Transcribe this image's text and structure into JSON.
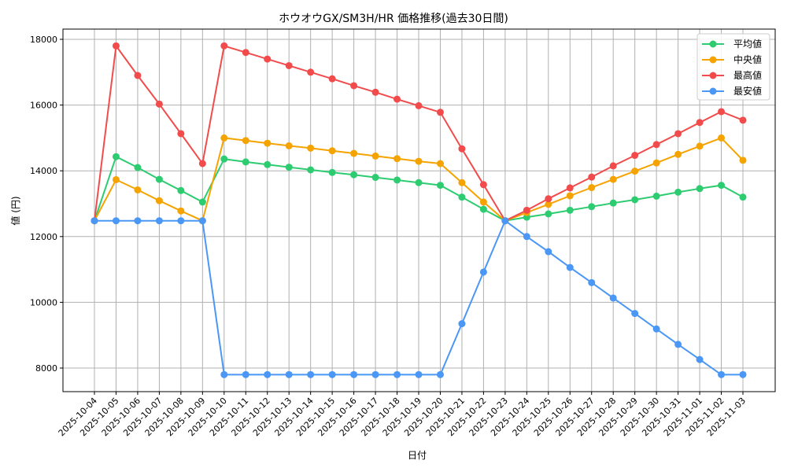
{
  "chart_data": {
    "type": "line",
    "title": "ホウオウGX/SM3H/HR 価格推移(過去30日間)",
    "xlabel": "日付",
    "ylabel": "値 (円)",
    "ylim": [
      7300,
      18350
    ],
    "yticks": [
      8000,
      10000,
      12000,
      14000,
      16000,
      18000
    ],
    "grid": true,
    "legend_position": "upper right",
    "categories": [
      "2025-10-04",
      "2025-10-05",
      "2025-10-06",
      "2025-10-07",
      "2025-10-08",
      "2025-10-09",
      "2025-10-10",
      "2025-10-11",
      "2025-10-12",
      "2025-10-13",
      "2025-10-14",
      "2025-10-15",
      "2025-10-16",
      "2025-10-17",
      "2025-10-18",
      "2025-10-19",
      "2025-10-20",
      "2025-10-21",
      "2025-10-22",
      "2025-10-23",
      "2025-10-24",
      "2025-10-25",
      "2025-10-26",
      "2025-10-27",
      "2025-10-28",
      "2025-10-29",
      "2025-10-30",
      "2025-10-31",
      "2025-11-01",
      "2025-11-02",
      "2025-11-03"
    ],
    "series": [
      {
        "name": "平均値",
        "color": "#2ecc71",
        "values": [
          12480,
          14430,
          14100,
          13740,
          13400,
          13050,
          14360,
          14270,
          14190,
          14110,
          14030,
          13950,
          13880,
          13800,
          13720,
          13640,
          13560,
          13200,
          12830,
          12480,
          12590,
          12690,
          12800,
          12910,
          13020,
          13120,
          13230,
          13350,
          13460,
          13560,
          13200
        ]
      },
      {
        "name": "中央値",
        "color": "#f5a300",
        "values": [
          12480,
          13730,
          13420,
          13090,
          12780,
          12480,
          15000,
          14920,
          14840,
          14760,
          14690,
          14610,
          14530,
          14450,
          14370,
          14290,
          14220,
          13640,
          13050,
          12480,
          12730,
          12980,
          13240,
          13490,
          13740,
          13990,
          14240,
          14500,
          14750,
          15000,
          14320
        ]
      },
      {
        "name": "最高値",
        "color": "#f24b4b",
        "values": [
          12480,
          17800,
          16900,
          16030,
          15130,
          14220,
          17800,
          17600,
          17400,
          17200,
          17000,
          16800,
          16590,
          16390,
          16180,
          15980,
          15780,
          14670,
          13580,
          12480,
          12800,
          13150,
          13480,
          13810,
          14150,
          14470,
          14800,
          15130,
          15470,
          15800,
          15540
        ]
      },
      {
        "name": "最安値",
        "color": "#4a97f5",
        "values": [
          12480,
          12480,
          12480,
          12480,
          12480,
          12480,
          7800,
          7800,
          7800,
          7800,
          7800,
          7800,
          7800,
          7800,
          7800,
          7800,
          7800,
          9350,
          10920,
          12480,
          12000,
          11540,
          11060,
          10600,
          10130,
          9660,
          9190,
          8720,
          8260,
          7800,
          7800
        ]
      }
    ]
  }
}
